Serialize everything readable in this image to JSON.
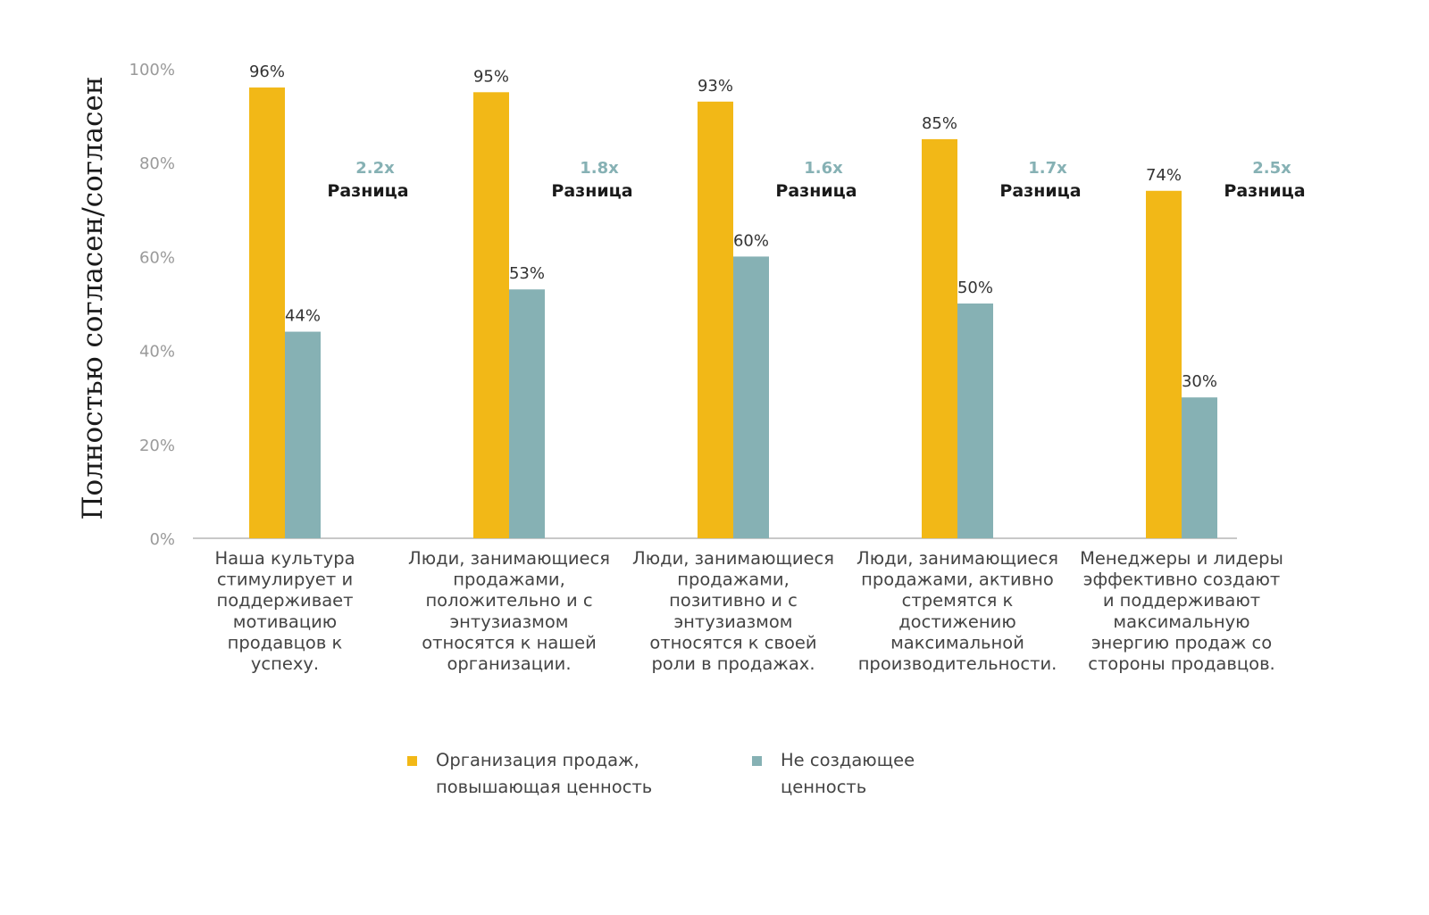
{
  "chart_data": {
    "type": "bar",
    "title": "",
    "xlabel": "",
    "ylabel": "Полностью согласен/согласен",
    "ylim": [
      0,
      100
    ],
    "yticks": [
      "0%",
      "20%",
      "40%",
      "60%",
      "80%",
      "100%"
    ],
    "ytick_values": [
      0,
      20,
      40,
      60,
      80,
      100
    ],
    "grid": false,
    "legend_position": "bottom",
    "categories": [
      [
        "Наша культура",
        "стимулирует и",
        "поддерживает",
        "мотивацию",
        "продавцов к",
        "успеху."
      ],
      [
        "Люди, занимающиеся",
        "продажами,",
        "положительно и с",
        "энтузиазмом",
        "относятся к нашей",
        "организации."
      ],
      [
        "Люди, занимающиеся",
        "продажами,",
        "позитивно и с",
        "энтузиазмом",
        "относятся к своей",
        "роли в продажах."
      ],
      [
        "Люди, занимающиеся",
        "продажами, активно",
        "стремятся к",
        "достижению",
        "максимальной",
        "производительности."
      ],
      [
        "Менеджеры и лидеры",
        "эффективно создают",
        "и поддерживают",
        "максимальную",
        "энергию продаж со",
        "стороны продавцов."
      ]
    ],
    "series": [
      {
        "name": "Организация продаж, повышающая ценность",
        "legend_lines": [
          "Организация продаж,",
          "повышающая ценность"
        ],
        "color": "#F2B817",
        "values": [
          96,
          95,
          93,
          85,
          74
        ],
        "labels": [
          "96%",
          "95%",
          "93%",
          "85%",
          "74%"
        ]
      },
      {
        "name": "Не создающее ценность",
        "legend_lines": [
          "Не создающее",
          "ценность"
        ],
        "color": "#86B1B4",
        "values": [
          44,
          53,
          60,
          50,
          30
        ],
        "labels": [
          "44%",
          "53%",
          "60%",
          "50%",
          "30%"
        ]
      }
    ],
    "annotations": [
      {
        "multiplier": "2.2x",
        "text": "Разница"
      },
      {
        "multiplier": "1.8x",
        "text": "Разница"
      },
      {
        "multiplier": "1.6x",
        "text": "Разница"
      },
      {
        "multiplier": "1.7x",
        "text": "Разница"
      },
      {
        "multiplier": "2.5x",
        "text": "Разница"
      }
    ],
    "annotation_color": "#86B1B4",
    "axis_color": "#C8C8C8",
    "tick_label_color": "#9A9A9A",
    "category_label_color": "#444444",
    "text_color": "#1A1A1A"
  }
}
